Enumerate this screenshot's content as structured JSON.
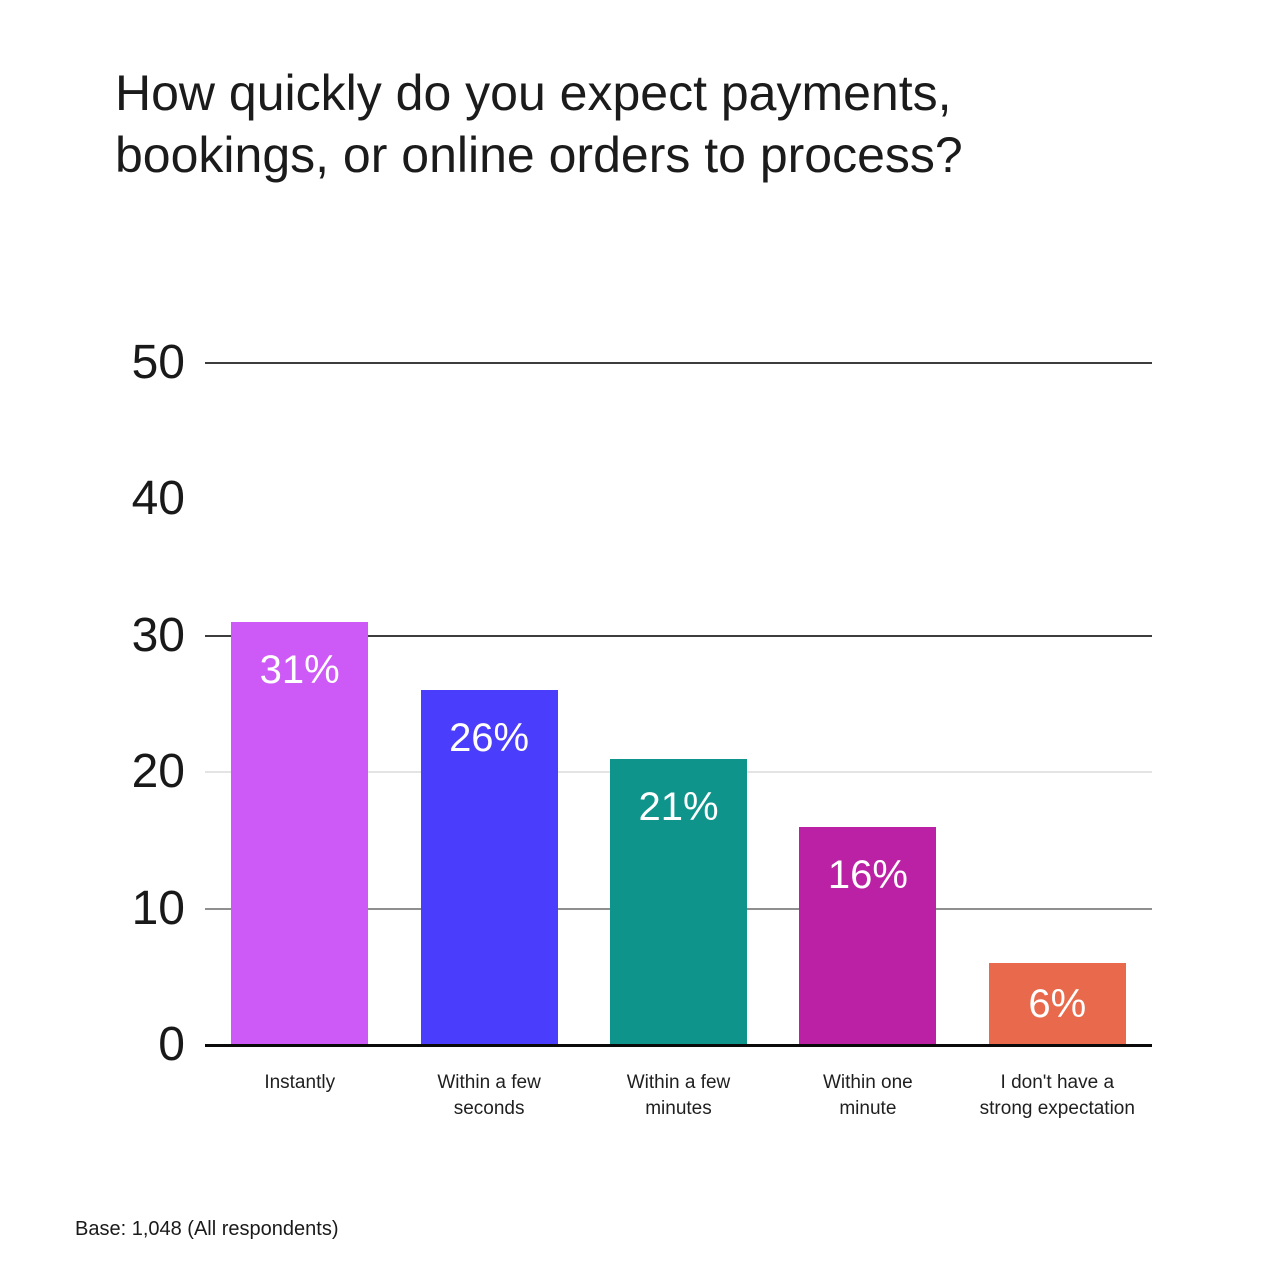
{
  "header": {
    "title": "How quickly do you expect payments, bookings, or online orders to process?",
    "title_lines": [
      "How quickly do you expect payments,",
      "bookings, or online orders to process?"
    ]
  },
  "footer": {
    "base_note": "Base: 1,048 (All respondents)"
  },
  "chart_data": {
    "type": "bar",
    "title": "How quickly do you expect payments, bookings, or online orders to process?",
    "categories": [
      "Instantly",
      "Within a few seconds",
      "Within a few minutes",
      "Within one minute",
      "I don't have a strong expectation"
    ],
    "category_lines": [
      [
        "Instantly"
      ],
      [
        "Within a few",
        "seconds"
      ],
      [
        "Within a few",
        "minutes"
      ],
      [
        "Within one",
        "minute"
      ],
      [
        "I don't have a",
        "strong expectation"
      ]
    ],
    "values": [
      31,
      26,
      21,
      16,
      6
    ],
    "value_labels": [
      "31%",
      "26%",
      "21%",
      "16%",
      "6%"
    ],
    "bar_colors": [
      "#cd5af7",
      "#4b3dfc",
      "#0f948c",
      "#bb21a4",
      "#e8694b"
    ],
    "value_label_color": "#ffffff",
    "xlabel": "",
    "ylabel": "",
    "ylim": [
      0,
      50
    ],
    "yticks": [
      0,
      10,
      20,
      30,
      40,
      50
    ],
    "gridlines": [
      {
        "value": 50,
        "color": "#3d3d3d"
      },
      {
        "value": 30,
        "color": "#3d3d3d"
      },
      {
        "value": 20,
        "color": "#e4e4e4"
      },
      {
        "value": 10,
        "color": "#8f8f8f"
      }
    ],
    "axis_color": "#0a0a0a",
    "legend": "none",
    "footnote": "Base: 1,048 (All respondents)"
  }
}
